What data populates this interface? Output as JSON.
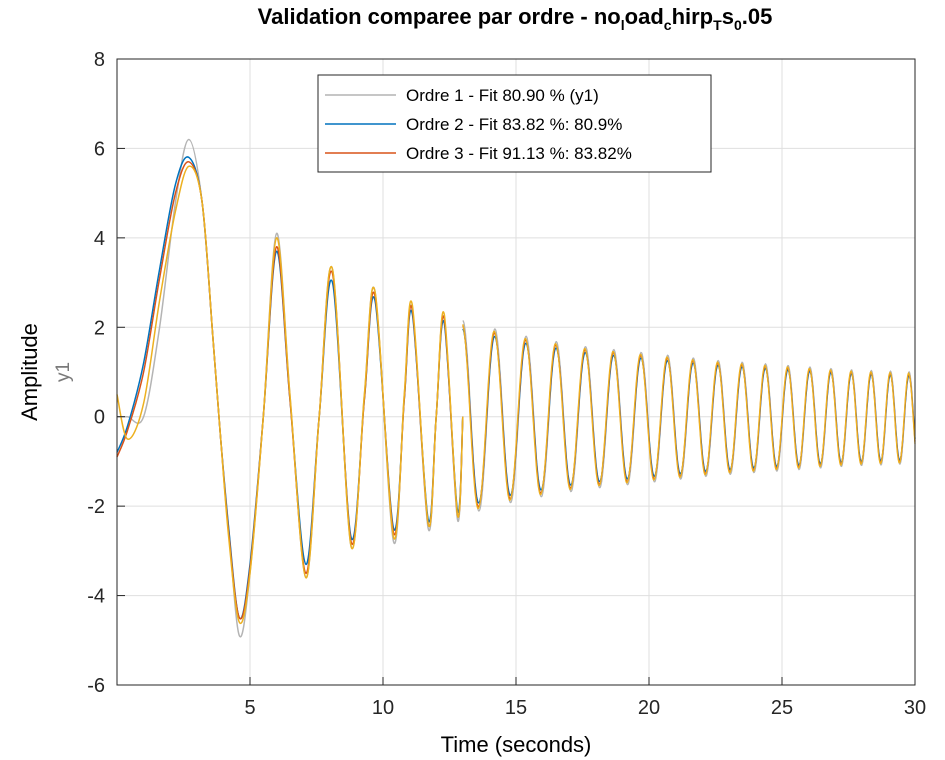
{
  "chart_data": {
    "type": "line",
    "title": "Validation comparee par ordre - no",
    "title_parts": {
      "prefix": "Validation comparee par ordre - no",
      "sub1": "l",
      "mid1": "oad",
      "sub2": "c",
      "mid2": "hirp",
      "sub3": "T",
      "mid3": "s",
      "sub4": "0",
      "suffix": ".05"
    },
    "xlabel": "Time (seconds)",
    "ylabel": "Amplitude",
    "ysublabel": "y1",
    "xlim": [
      0,
      30
    ],
    "ylim": [
      -6,
      8
    ],
    "xticks": [
      5,
      10,
      15,
      20,
      25,
      30
    ],
    "yticks": [
      -6,
      -4,
      -2,
      0,
      2,
      4,
      6,
      8
    ],
    "xtick_labels": [
      "5",
      "10",
      "15",
      "20",
      "25",
      "30"
    ],
    "ytick_labels": [
      "-6",
      "-4",
      "-2",
      "0",
      "2",
      "4",
      "6",
      "8"
    ],
    "grid": true,
    "legend_position": "top-center",
    "legend": [
      "Ordre 1 - Fit 80.90 % (y1)",
      "Ordre 2 - Fit 83.82 %: 80.9%",
      "Ordre 3 - Fit 91.13 %: 83.82%"
    ],
    "series": [
      {
        "label": "Ordre 1 - Fit 80.90 % (y1)",
        "color": "#b4b4b4",
        "x": [
          0,
          0.4,
          1.0,
          1.6,
          2.2,
          2.7,
          3.2,
          3.6,
          3.9,
          4.2,
          4.6,
          5.0,
          5.5,
          6.0,
          6.5,
          7.1,
          7.6,
          8.1,
          8.8,
          9.3,
          9.7,
          10.4,
          10.8,
          11.1,
          11.7,
          12.0,
          12.3,
          12.8,
          13.0
        ],
        "y": [
          0.0,
          0.0,
          0.0,
          2.0,
          4.8,
          6.2,
          4.8,
          1.8,
          -0.5,
          -2.5,
          -4.9,
          -3.5,
          0.0,
          4.1,
          0.5,
          -3.6,
          0.0,
          3.3,
          -2.9,
          0.5,
          2.8,
          -2.8,
          0.5,
          2.4,
          -2.5,
          0.0,
          2.2,
          -2.3,
          0.0
        ]
      },
      {
        "label": "Ordre 2 - Fit 83.82 %: 80.9%",
        "color": "#0072bd",
        "x": [
          0,
          0.4,
          1.0,
          1.6,
          2.2,
          2.7,
          3.2,
          3.6,
          3.9,
          4.2,
          4.6,
          5.0,
          5.5,
          6.0,
          6.5,
          7.1,
          7.6,
          8.1,
          8.8,
          9.3,
          9.7,
          10.4,
          10.8,
          11.1,
          11.7,
          12.0,
          12.3,
          12.8,
          13.0
        ],
        "y": [
          -0.8,
          -0.2,
          1.2,
          3.3,
          5.2,
          5.8,
          4.8,
          1.8,
          -0.5,
          -2.5,
          -4.5,
          -3.3,
          0.0,
          3.7,
          0.4,
          -3.3,
          0.0,
          3.0,
          -2.7,
          0.4,
          2.6,
          -2.5,
          0.4,
          2.3,
          -2.3,
          0.0,
          2.1,
          -2.1,
          0.0
        ]
      },
      {
        "label": "Ordre 3 - Fit 91.13 %: 83.82%",
        "color": "#d95319",
        "x": [
          0,
          0.4,
          1.0,
          1.6,
          2.2,
          2.7,
          3.2,
          3.6,
          3.9,
          4.2,
          4.6,
          5.0,
          5.5,
          6.0,
          6.5,
          7.1,
          7.6,
          8.1,
          8.8,
          9.3,
          9.7,
          10.4,
          10.8,
          11.1,
          11.7,
          12.0,
          12.3,
          12.8,
          13.0
        ],
        "y": [
          -0.9,
          -0.3,
          1.0,
          3.1,
          5.0,
          5.7,
          4.8,
          1.8,
          -0.5,
          -2.6,
          -4.5,
          -3.4,
          0.0,
          3.8,
          0.4,
          -3.5,
          0.0,
          3.2,
          -2.8,
          0.4,
          2.7,
          -2.6,
          0.4,
          2.4,
          -2.4,
          0.0,
          2.2,
          -2.2,
          0.0
        ]
      },
      {
        "label": "",
        "color": "#edb120",
        "x": [
          0,
          0.4,
          1.0,
          1.6,
          2.2,
          2.7,
          3.2,
          3.6,
          3.9,
          4.2,
          4.6,
          5.0,
          5.5,
          6.0,
          6.5,
          7.1,
          7.6,
          8.1,
          8.8,
          9.3,
          9.7,
          10.4,
          10.8,
          11.1,
          11.7,
          12.0,
          12.3,
          12.8,
          13.0
        ],
        "y": [
          0.5,
          -0.5,
          0.3,
          2.6,
          4.6,
          5.6,
          4.8,
          1.8,
          -0.5,
          -2.7,
          -4.6,
          -3.5,
          0.0,
          4.0,
          0.5,
          -3.6,
          0.0,
          3.3,
          -2.9,
          0.5,
          2.8,
          -2.7,
          0.5,
          2.5,
          -2.4,
          0.0,
          2.3,
          -2.2,
          0.0
        ]
      }
    ],
    "envelope": {
      "x": [
        13,
        15,
        17.5,
        20,
        22.5,
        25,
        27.5,
        30
      ],
      "upper": [
        2.05,
        1.75,
        1.5,
        1.35,
        1.2,
        1.1,
        1.0,
        0.95
      ],
      "lower": [
        -2.1,
        -1.8,
        -1.55,
        -1.4,
        -1.25,
        -1.15,
        -1.05,
        -1.0
      ],
      "period_start": 1.23,
      "period_end": 0.68
    }
  }
}
